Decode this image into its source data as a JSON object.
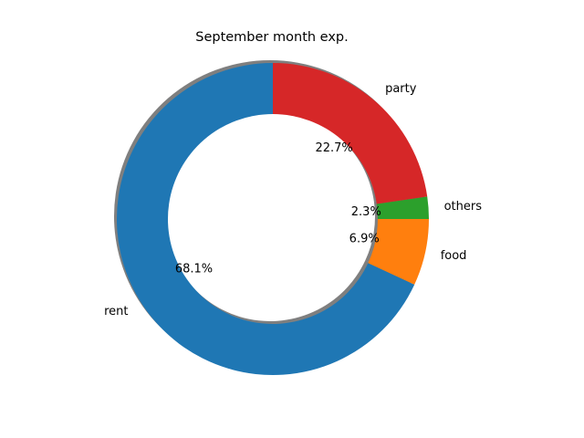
{
  "chart_data": {
    "type": "pie",
    "title": "September month exp.",
    "donut": true,
    "shadow": true,
    "start_angle_deg": 90,
    "direction": "counterclockwise",
    "slices": [
      {
        "label": "rent",
        "value": 68.1,
        "pct_text": "68.1%",
        "color": "#1f77b4"
      },
      {
        "label": "food",
        "value": 6.9,
        "pct_text": "6.9%",
        "color": "#ff7f0e"
      },
      {
        "label": "others",
        "value": 2.3,
        "pct_text": "2.3%",
        "color": "#2ca02c"
      },
      {
        "label": "party",
        "value": 22.7,
        "pct_text": "22.7%",
        "color": "#d62728"
      }
    ]
  }
}
